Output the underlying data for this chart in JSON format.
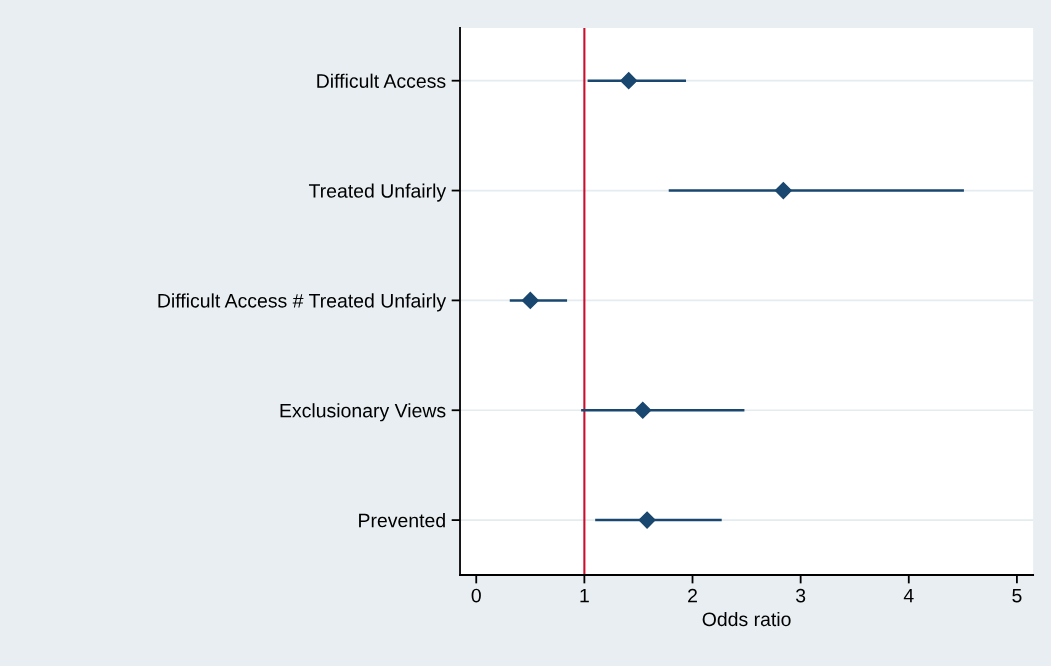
{
  "chart_data": {
    "type": "scatter",
    "orientation": "horizontal",
    "xlabel": "Odds ratio",
    "categories": [
      "Difficult Access",
      "Treated Unfairly",
      "Difficult Access # Treated Unfairly",
      "Exclusionary Views",
      "Prevented"
    ],
    "values": [
      1.41,
      2.84,
      0.5,
      1.54,
      1.58
    ],
    "errors": [
      [
        1.03,
        1.94
      ],
      [
        1.78,
        4.51
      ],
      [
        0.31,
        0.84
      ],
      [
        0.97,
        2.48
      ],
      [
        1.1,
        2.27
      ]
    ],
    "color": "#1a476f",
    "marker": "diamond",
    "xlim": [
      -0.15,
      5.15
    ],
    "xticks": [
      0,
      1,
      2,
      3,
      4,
      5
    ],
    "ref_lines": [
      {
        "axis": "x",
        "value": 1,
        "color": "#c8102e"
      }
    ],
    "grid": "y",
    "legend": false
  }
}
